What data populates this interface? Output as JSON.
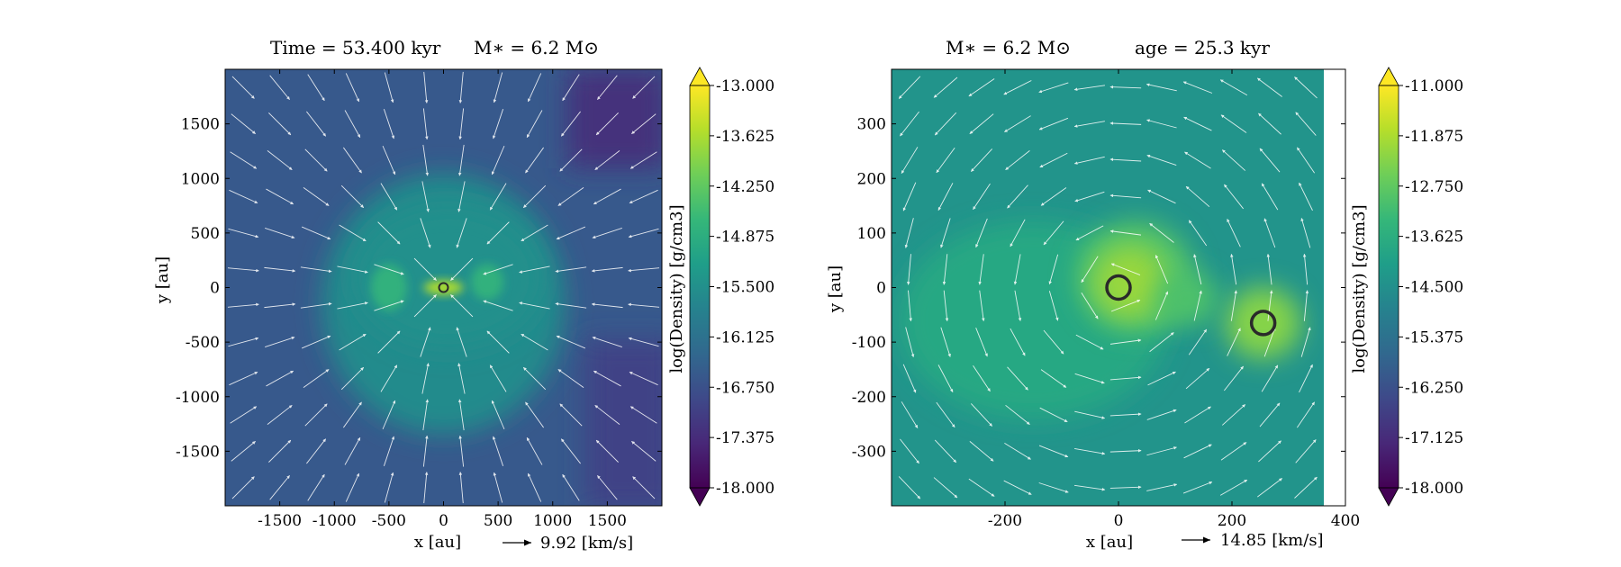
{
  "chart_data": [
    {
      "type": "heatmap",
      "title_parts": [
        "Time = 53.400 kyr",
        "M∗ = 6.2 M⊙"
      ],
      "xlabel": "x [au]",
      "ylabel": "y [au]",
      "xlim": [
        -2000,
        2000
      ],
      "ylim": [
        -2000,
        2000
      ],
      "xticks": [
        -1500,
        -1000,
        -500,
        0,
        500,
        1000,
        1500
      ],
      "yticks": [
        -1500,
        -1000,
        -500,
        0,
        500,
        1000,
        1500
      ],
      "velocity_key": "9.92 [km/s]",
      "colorbar": {
        "label": "log(Density) [g/cm3]",
        "range": [
          -18.0,
          -13.0
        ],
        "ticks": [
          "-13.000",
          "-13.625",
          "-14.250",
          "-14.875",
          "-15.500",
          "-16.125",
          "-16.750",
          "-17.375",
          "-18.000"
        ],
        "colormap": "viridis"
      },
      "sinks": [
        {
          "x": 0,
          "y": 0
        }
      ],
      "flow": "infall"
    },
    {
      "type": "heatmap",
      "title_parts": [
        "M∗ = 6.2 M⊙",
        "age = 25.3 kyr"
      ],
      "xlabel": "x [au]",
      "ylabel": "y [au]",
      "xlim": [
        -400,
        400
      ],
      "ylim": [
        -400,
        400
      ],
      "xticks": [
        -200,
        0,
        200,
        400
      ],
      "yticks": [
        -300,
        -200,
        -100,
        0,
        100,
        200,
        300
      ],
      "velocity_key": "14.85 [km/s]",
      "colorbar": {
        "label": "log(Density) [g/cm3]",
        "range": [
          -18.0,
          -11.0
        ],
        "ticks": [
          "-11.000",
          "-11.875",
          "-12.750",
          "-13.625",
          "-14.500",
          "-15.375",
          "-16.250",
          "-17.125",
          "-18.000"
        ],
        "colormap": "viridis"
      },
      "sinks": [
        {
          "x": 0,
          "y": 0
        },
        {
          "x": 255,
          "y": -65
        }
      ],
      "flow": "rotation"
    }
  ],
  "colors": {
    "viridis": [
      "#440154",
      "#482878",
      "#3e4989",
      "#31688e",
      "#26828e",
      "#1f9e89",
      "#35b779",
      "#6ece58",
      "#b5de2b",
      "#fde725"
    ],
    "streamline": "#ffffff",
    "sink_edge": "#2a2a2a"
  }
}
